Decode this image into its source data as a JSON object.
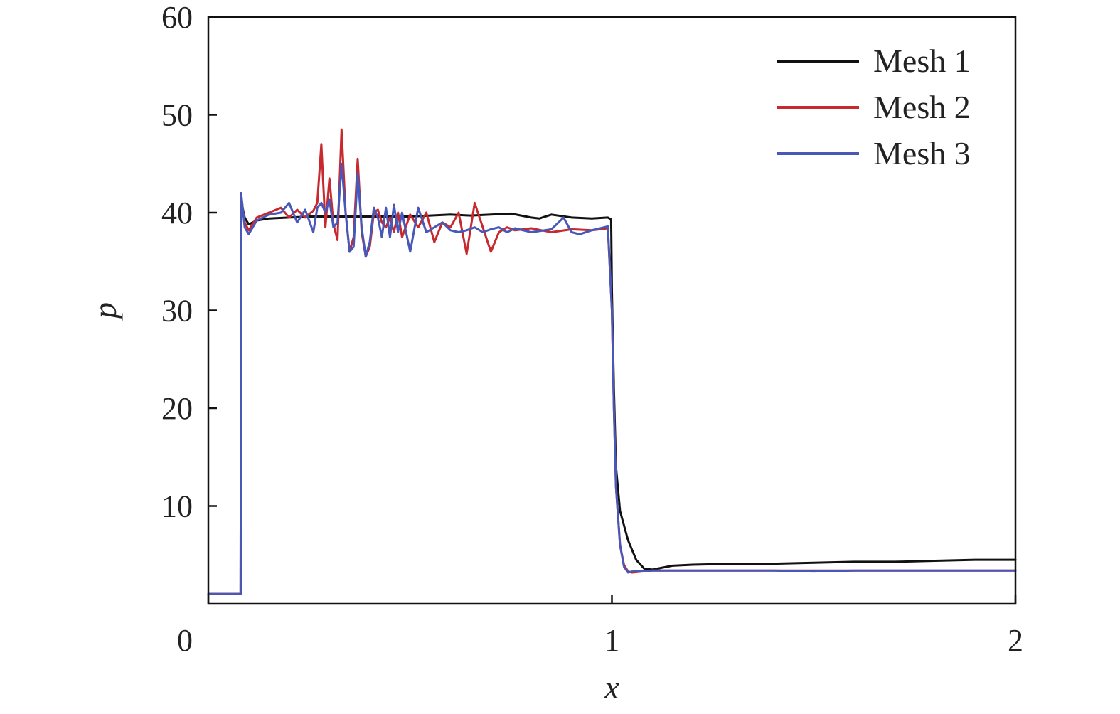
{
  "chart_data": {
    "type": "line",
    "title": "",
    "xlabel": "x",
    "ylabel": "p",
    "xlim": [
      0,
      2
    ],
    "ylim": [
      0,
      60
    ],
    "xticks": [
      0,
      1,
      2
    ],
    "xtick_labels": [
      "0",
      "1",
      "2"
    ],
    "yticks": [
      10,
      20,
      30,
      40,
      50,
      60
    ],
    "ytick_labels": [
      "10",
      "20",
      "30",
      "40",
      "50",
      "60"
    ],
    "grid": false,
    "legend_position": "top-right",
    "series": [
      {
        "name": "Mesh 1",
        "color": "#111111",
        "x": [
          0,
          0.08,
          0.081,
          0.085,
          0.09,
          0.1,
          0.12,
          0.15,
          0.2,
          0.25,
          0.3,
          0.35,
          0.4,
          0.45,
          0.5,
          0.55,
          0.6,
          0.65,
          0.7,
          0.75,
          0.8,
          0.82,
          0.85,
          0.9,
          0.95,
          0.99,
          0.998,
          1.0,
          1.005,
          1.01,
          1.02,
          1.04,
          1.06,
          1.08,
          1.1,
          1.15,
          1.2,
          1.3,
          1.4,
          1.5,
          1.6,
          1.7,
          1.8,
          1.9,
          2.0
        ],
        "y": [
          1.0,
          1.0,
          41.5,
          40.5,
          39.5,
          38.8,
          39.2,
          39.4,
          39.5,
          39.6,
          39.6,
          39.6,
          39.6,
          39.6,
          39.6,
          39.7,
          39.8,
          39.7,
          39.8,
          39.9,
          39.5,
          39.4,
          39.8,
          39.5,
          39.4,
          39.5,
          39.3,
          32.0,
          22.0,
          14.0,
          9.5,
          6.5,
          4.5,
          3.6,
          3.5,
          3.9,
          4.0,
          4.1,
          4.1,
          4.2,
          4.3,
          4.3,
          4.4,
          4.5,
          4.5
        ]
      },
      {
        "name": "Mesh 2",
        "color": "#c62a2f",
        "x": [
          0,
          0.08,
          0.081,
          0.085,
          0.09,
          0.1,
          0.12,
          0.15,
          0.18,
          0.2,
          0.22,
          0.24,
          0.26,
          0.27,
          0.28,
          0.29,
          0.3,
          0.31,
          0.32,
          0.33,
          0.34,
          0.35,
          0.36,
          0.37,
          0.38,
          0.39,
          0.4,
          0.41,
          0.42,
          0.43,
          0.44,
          0.45,
          0.46,
          0.47,
          0.48,
          0.5,
          0.52,
          0.54,
          0.56,
          0.58,
          0.6,
          0.62,
          0.64,
          0.66,
          0.68,
          0.7,
          0.72,
          0.74,
          0.76,
          0.8,
          0.85,
          0.9,
          0.95,
          0.99,
          1.0,
          1.005,
          1.01,
          1.02,
          1.03,
          1.04,
          1.05,
          1.1,
          1.2,
          1.3,
          1.4,
          1.5,
          1.6,
          1.7,
          1.8,
          1.9,
          2.0
        ],
        "y": [
          1.0,
          1.0,
          42.0,
          40.5,
          39.0,
          38.2,
          39.5,
          40.0,
          40.5,
          39.5,
          40.3,
          39.5,
          40.2,
          41.0,
          47.0,
          38.5,
          43.5,
          38.8,
          37.2,
          48.5,
          40.0,
          36.0,
          37.5,
          45.5,
          38.0,
          35.5,
          36.5,
          40.0,
          40.3,
          39.0,
          38.5,
          39.5,
          38.0,
          40.0,
          37.5,
          39.8,
          38.5,
          40.0,
          37.0,
          39.0,
          38.5,
          40.0,
          35.8,
          41.0,
          38.5,
          36.0,
          38.0,
          38.5,
          38.2,
          38.4,
          38.0,
          38.3,
          38.2,
          38.4,
          30.0,
          20.0,
          12.0,
          6.0,
          4.0,
          3.3,
          3.2,
          3.4,
          3.4,
          3.4,
          3.4,
          3.4,
          3.4,
          3.4,
          3.4,
          3.4,
          3.4
        ]
      },
      {
        "name": "Mesh 3",
        "color": "#4758b8",
        "x": [
          0,
          0.08,
          0.081,
          0.085,
          0.09,
          0.1,
          0.12,
          0.15,
          0.18,
          0.2,
          0.22,
          0.24,
          0.26,
          0.27,
          0.28,
          0.29,
          0.3,
          0.31,
          0.32,
          0.33,
          0.34,
          0.35,
          0.36,
          0.37,
          0.38,
          0.39,
          0.4,
          0.41,
          0.42,
          0.43,
          0.44,
          0.45,
          0.46,
          0.47,
          0.48,
          0.5,
          0.52,
          0.54,
          0.56,
          0.58,
          0.6,
          0.62,
          0.64,
          0.66,
          0.68,
          0.7,
          0.72,
          0.74,
          0.76,
          0.8,
          0.85,
          0.88,
          0.9,
          0.92,
          0.95,
          0.99,
          1.0,
          1.005,
          1.01,
          1.02,
          1.03,
          1.04,
          1.05,
          1.1,
          1.2,
          1.3,
          1.4,
          1.5,
          1.6,
          1.7,
          1.8,
          1.9,
          2.0
        ],
        "y": [
          1.0,
          1.0,
          42.0,
          40.5,
          38.5,
          37.8,
          39.2,
          39.8,
          40.0,
          41.0,
          39.0,
          40.3,
          38.0,
          40.5,
          41.0,
          40.0,
          41.3,
          38.5,
          39.0,
          45.0,
          40.0,
          36.0,
          36.5,
          44.0,
          38.5,
          35.5,
          37.0,
          40.5,
          39.5,
          37.5,
          40.5,
          37.5,
          40.8,
          38.0,
          40.0,
          36.0,
          40.5,
          38.0,
          38.5,
          39.0,
          38.2,
          38.0,
          38.2,
          38.5,
          38.0,
          38.3,
          38.5,
          38.0,
          38.4,
          38.0,
          38.3,
          39.5,
          38.0,
          37.8,
          38.2,
          38.6,
          30.0,
          20.0,
          12.0,
          6.0,
          3.8,
          3.2,
          3.3,
          3.4,
          3.4,
          3.4,
          3.4,
          3.3,
          3.4,
          3.4,
          3.4,
          3.4,
          3.4
        ]
      }
    ]
  }
}
